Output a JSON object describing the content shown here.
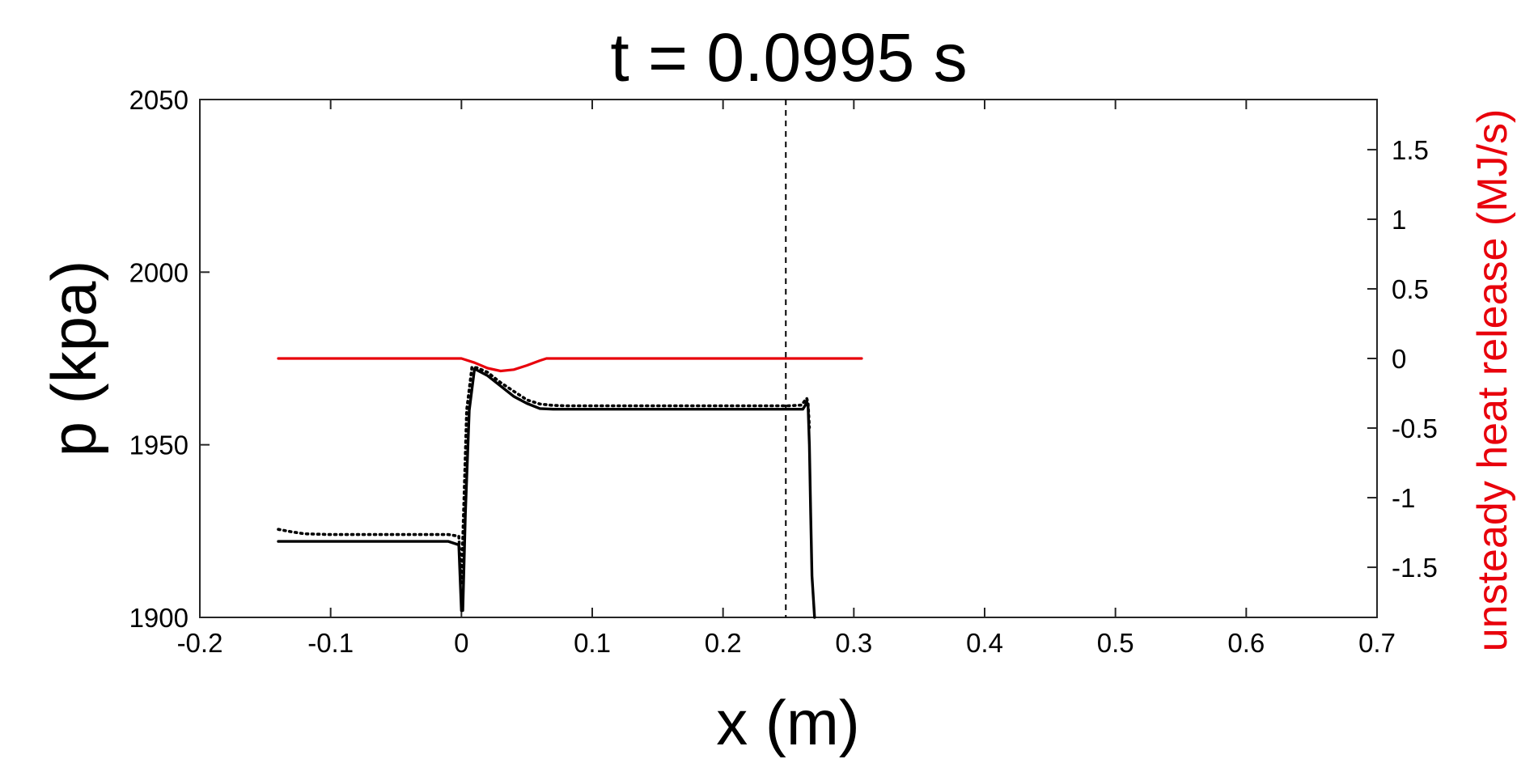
{
  "chart_data": {
    "type": "line",
    "title": "t = 0.0995 s",
    "xlabel": "x (m)",
    "ylabel": "p (kpa)",
    "ylabel_right": "unsteady heat release (MJ/s)",
    "xlim": [
      -0.2,
      0.7
    ],
    "ylim": [
      1900,
      2050
    ],
    "ylim_right": [
      -1.86,
      1.86
    ],
    "x_ticks": [
      -0.2,
      -0.1,
      0,
      0.1,
      0.2,
      0.3,
      0.4,
      0.5,
      0.6,
      0.7
    ],
    "x_tick_labels": [
      "-0.2",
      "-0.1",
      "0",
      "0.1",
      "0.2",
      "0.3",
      "0.4",
      "0.5",
      "0.6",
      "0.7"
    ],
    "y_ticks": [
      1900,
      1950,
      2000,
      2050
    ],
    "y_tick_labels": [
      "1900",
      "1950",
      "2000",
      "2050"
    ],
    "y_right_ticks": [
      -1.5,
      -1,
      -0.5,
      0,
      0.5,
      1,
      1.5
    ],
    "y_right_tick_labels": [
      "-1.5",
      "-1",
      "-0.5",
      "0",
      "0.5",
      "1",
      "1.5"
    ],
    "grid": false,
    "right_axis_color": "#e8000b",
    "vline": {
      "x": 0.248,
      "style": "dashed",
      "color": "#000000"
    },
    "series": [
      {
        "axis": "left",
        "style": "solid",
        "color": "#000000",
        "x": [
          -0.14,
          -0.1,
          -0.05,
          -0.01,
          -0.002,
          0.0,
          0.001,
          0.003,
          0.006,
          0.01,
          0.02,
          0.03,
          0.04,
          0.05,
          0.06,
          0.07,
          0.08,
          0.15,
          0.2,
          0.25,
          0.261,
          0.263,
          0.264,
          0.265,
          0.266,
          0.267,
          0.268,
          0.27
        ],
        "y": [
          1922,
          1922,
          1922,
          1922,
          1921,
          1902,
          1902,
          1930,
          1960,
          1972,
          1970,
          1967,
          1964,
          1962,
          1960.5,
          1960.3,
          1960.3,
          1960.3,
          1960.3,
          1960.3,
          1960.3,
          1961.5,
          1962.5,
          1961,
          1950,
          1930,
          1912,
          1900
        ]
      },
      {
        "axis": "left",
        "style": "dotted",
        "color": "#000000",
        "x": [
          -0.14,
          -0.13,
          -0.12,
          -0.1,
          -0.05,
          -0.01,
          -0.002,
          0.0,
          0.002,
          0.004,
          0.008,
          0.012,
          0.02,
          0.03,
          0.04,
          0.05,
          0.06,
          0.07,
          0.08,
          0.15,
          0.2,
          0.25,
          0.26,
          0.262,
          0.264,
          0.265,
          0.266
        ],
        "y": [
          1925.5,
          1924.8,
          1924.2,
          1924,
          1924,
          1924,
          1923.5,
          1910,
          1935,
          1960,
          1972.5,
          1972.3,
          1971,
          1968,
          1965.5,
          1963,
          1961.8,
          1961.4,
          1961.3,
          1961.3,
          1961.3,
          1961.3,
          1961.5,
          1962.5,
          1963.5,
          1962,
          1955
        ]
      },
      {
        "axis": "right",
        "style": "solid",
        "color": "#e8000b",
        "x": [
          -0.14,
          -0.05,
          0.0,
          0.01,
          0.02,
          0.03,
          0.04,
          0.05,
          0.06,
          0.065,
          0.07,
          0.15,
          0.25,
          0.306
        ],
        "y": [
          0,
          0,
          0,
          -0.03,
          -0.07,
          -0.09,
          -0.08,
          -0.05,
          -0.015,
          0,
          0,
          0,
          0,
          0
        ]
      }
    ]
  }
}
